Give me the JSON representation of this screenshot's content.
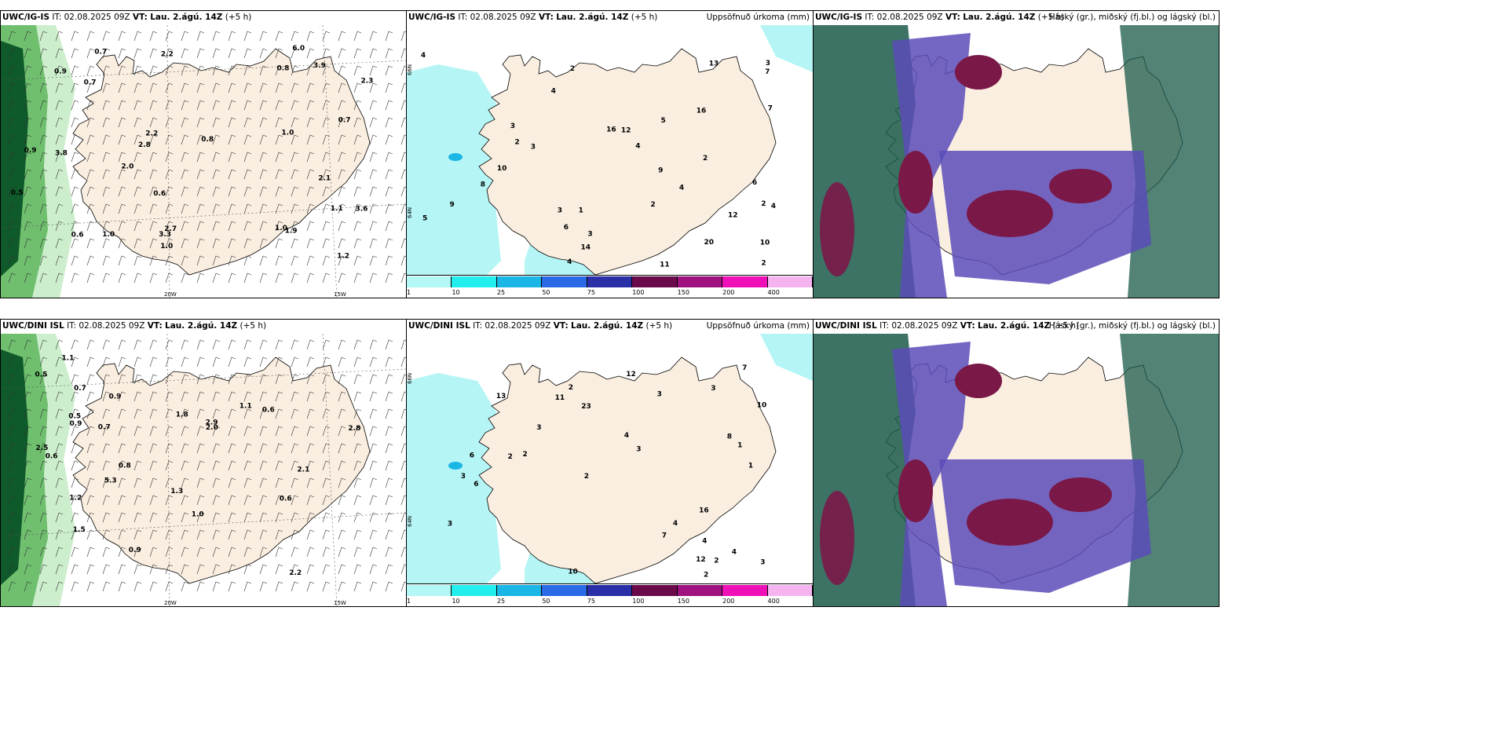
{
  "rows": [
    {
      "model": "UWC/IG-IS",
      "panels": [
        {
          "model": "UWC/IG-IS",
          "it_label": "IT:",
          "it": "02.08.2025 09Z",
          "vt_label": "VT:",
          "vt": "Lau. 2.ágú. 14Z",
          "lead": "(+5 h)",
          "right_title": ""
        },
        {
          "model": "UWC/IG-IS",
          "it_label": "IT:",
          "it": "02.08.2025 09Z",
          "vt_label": "VT:",
          "vt": "Lau. 2.ágú. 14Z",
          "lead": "(+5 h)",
          "right_title": "Uppsöfnuð úrkoma (mm)"
        },
        {
          "model": "UWC/IG-IS",
          "it_label": "IT:",
          "it": "02.08.2025 09Z",
          "vt_label": "VT:",
          "vt": "Lau. 2.ágú. 14Z",
          "lead": "(+5 h)",
          "right_title": "Háský (gr.), miðský (fj.bl.) og lágský (bl.)"
        }
      ]
    },
    {
      "model": "UWC/DINI ISL",
      "panels": [
        {
          "model": "UWC/DINI ISL",
          "it_label": "IT:",
          "it": "02.08.2025 09Z",
          "vt_label": "VT:",
          "vt": "Lau. 2.ágú. 14Z",
          "lead": "(+5 h)",
          "right_title": ""
        },
        {
          "model": "UWC/DINI ISL",
          "it_label": "IT:",
          "it": "02.08.2025 09Z",
          "vt_label": "VT:",
          "vt": "Lau. 2.ágú. 14Z",
          "lead": "(+5 h)",
          "right_title": "Uppsöfnuð úrkoma (mm)"
        },
        {
          "model": "UWC/DINI ISL",
          "it_label": "IT:",
          "it": "02.08.2025 09Z",
          "vt_label": "VT:",
          "vt": "Lau. 2.ágú. 14Z",
          "lead": "(+5 h)",
          "right_title": "Háský (gr.), miðský (fj.bl.) og lágský (bl.)"
        }
      ]
    }
  ],
  "axes": {
    "lon_20": "20W",
    "lon_15": "15W",
    "lat_66": "66N",
    "lat_64": "64N"
  },
  "colorbar": {
    "ticks": [
      "1",
      "10",
      "25",
      "50",
      "75",
      "100",
      "150",
      "200",
      "400"
    ],
    "colors": [
      "#b3f7f7",
      "#22eeee",
      "#19b6e6",
      "#2b6ae6",
      "#2a2fa8",
      "#6a0a4a",
      "#a01280",
      "#f010b8",
      "#f5b4f0"
    ]
  },
  "colors": {
    "land": "#faeee0",
    "sea": "#ffffff",
    "precip_light": "#b5f5f5",
    "wind_green": "#0f5a2a",
    "cloud_high": "#1a5a4a",
    "cloud_mid": "#5a4cb8",
    "cloud_low": "#7a1848"
  },
  "labels": {
    "wind_top": [
      "1.0",
      "2.2",
      "0.8",
      "2.8",
      "2.7",
      "3.3",
      "3.9",
      "1.9",
      "2.1",
      "0.7",
      "1.0",
      "0.6",
      "6.0",
      "1.0",
      "2.2",
      "1.2",
      "0.9",
      "0.9",
      "0.7",
      "0.5",
      "2.3",
      "3.8",
      "3.6",
      "1.0",
      "1.1",
      "0.7",
      "2.0",
      "0.8",
      "0.6"
    ],
    "wind_bot": [
      "0.8",
      "1.1",
      "0.7",
      "2.9",
      "2.8",
      "2.5",
      "2.2",
      "0.9",
      "1.3",
      "0.9",
      "0.5",
      "0.6",
      "2.0",
      "5.3",
      "1.2",
      "0.6",
      "2.1",
      "0.7",
      "0.9",
      "0.6",
      "0.5",
      "1.8",
      "1.0",
      "1.5",
      "1.1"
    ],
    "precip_top": [
      "2",
      "3",
      "4",
      "4",
      "6",
      "9",
      "7",
      "10",
      "9",
      "2",
      "6",
      "2",
      "3",
      "5",
      "20",
      "10",
      "16",
      "4",
      "8",
      "13",
      "16",
      "14",
      "12",
      "4",
      "3",
      "5",
      "2",
      "3",
      "4",
      "11",
      "12",
      "7",
      "2",
      "3",
      "2",
      "1",
      "4"
    ],
    "precip_bot": [
      "2",
      "3",
      "3",
      "2",
      "2",
      "3",
      "1",
      "23",
      "6",
      "8",
      "10",
      "10",
      "4",
      "3",
      "16",
      "12",
      "13",
      "12",
      "11",
      "7",
      "6",
      "4",
      "2",
      "3",
      "4",
      "7",
      "1",
      "2",
      "3",
      "4",
      "3",
      "2"
    ]
  }
}
